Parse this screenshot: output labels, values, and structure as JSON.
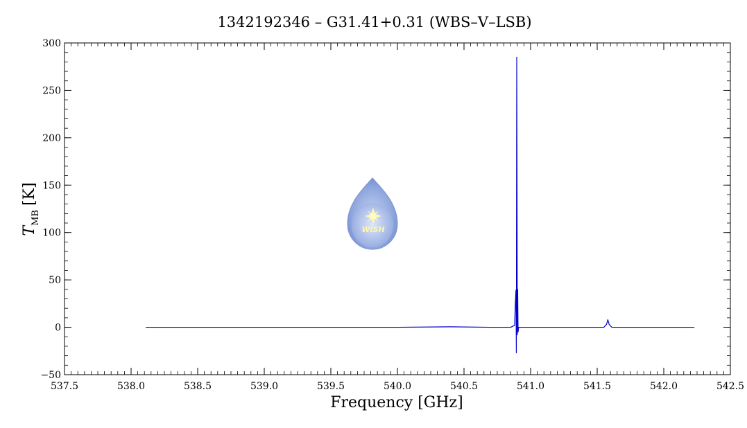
{
  "chart_data": {
    "type": "line",
    "title": "1342192346 – G31.41+0.31 (WBS–V–LSB)",
    "xlabel": "Frequency [GHz]",
    "ylabel_main": "T",
    "ylabel_sub": "MB",
    "ylabel_unit": "[K]",
    "xlim": [
      537.5,
      542.5
    ],
    "ylim": [
      -50,
      300
    ],
    "x_ticks": [
      537.5,
      538.0,
      538.5,
      539.0,
      539.5,
      540.0,
      540.5,
      541.0,
      541.5,
      542.0,
      542.5
    ],
    "x_tick_labels": [
      "537.5",
      "538.0",
      "538.5",
      "539.0",
      "539.5",
      "540.0",
      "540.5",
      "541.0",
      "541.5",
      "542.0",
      "542.5"
    ],
    "y_ticks": [
      -50,
      0,
      50,
      100,
      150,
      200,
      250,
      300
    ],
    "y_tick_labels": [
      "−50",
      "0",
      "50",
      "100",
      "150",
      "200",
      "250",
      "300"
    ],
    "grid": false,
    "series": [
      {
        "color": "#0000cc",
        "x": [
          538.11,
          538.5,
          539.0,
          539.5,
          540.0,
          540.4,
          540.7,
          540.85,
          540.88,
          540.885,
          540.89,
          540.893,
          540.896,
          540.898,
          540.9,
          540.903,
          540.906,
          540.91,
          540.93,
          541.0,
          541.3,
          541.55,
          541.57,
          541.58,
          541.59,
          541.61,
          541.8,
          542.0,
          542.23
        ],
        "y": [
          0,
          0,
          0,
          0,
          0,
          0.5,
          0,
          0,
          2,
          24,
          39,
          -27,
          285,
          160,
          -8,
          40,
          -5,
          0,
          0,
          0,
          0,
          0,
          3,
          8,
          3,
          0,
          0,
          0,
          0
        ]
      }
    ],
    "logo_text": "WISH"
  }
}
